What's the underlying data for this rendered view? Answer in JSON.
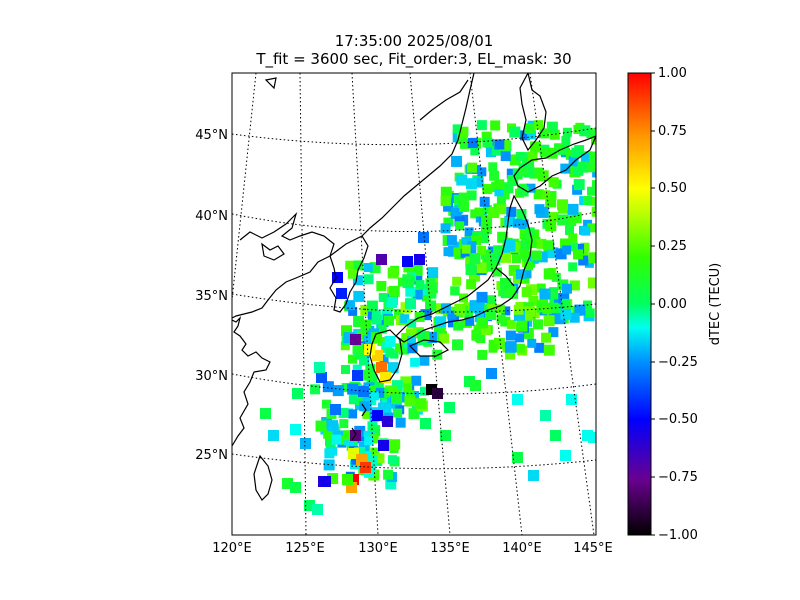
{
  "title_line1": "17:35:00 2025/08/01",
  "title_line2": "T_fit = 3600 sec, Fit_order:3, EL_mask: 30",
  "colorbar": {
    "label": "dTEC (TECU)",
    "range": [
      -1.0,
      1.0
    ],
    "ticks": [
      "1.00",
      "0.75",
      "0.50",
      "0.25",
      "0.00",
      "−0.25",
      "−0.50",
      "−0.75",
      "−1.00"
    ]
  },
  "lon_ticks": [
    "120°E",
    "125°E",
    "130°E",
    "135°E",
    "140°E",
    "145°E"
  ],
  "lat_ticks": [
    "25°N",
    "30°N",
    "35°N",
    "40°N",
    "45°N"
  ]
}
